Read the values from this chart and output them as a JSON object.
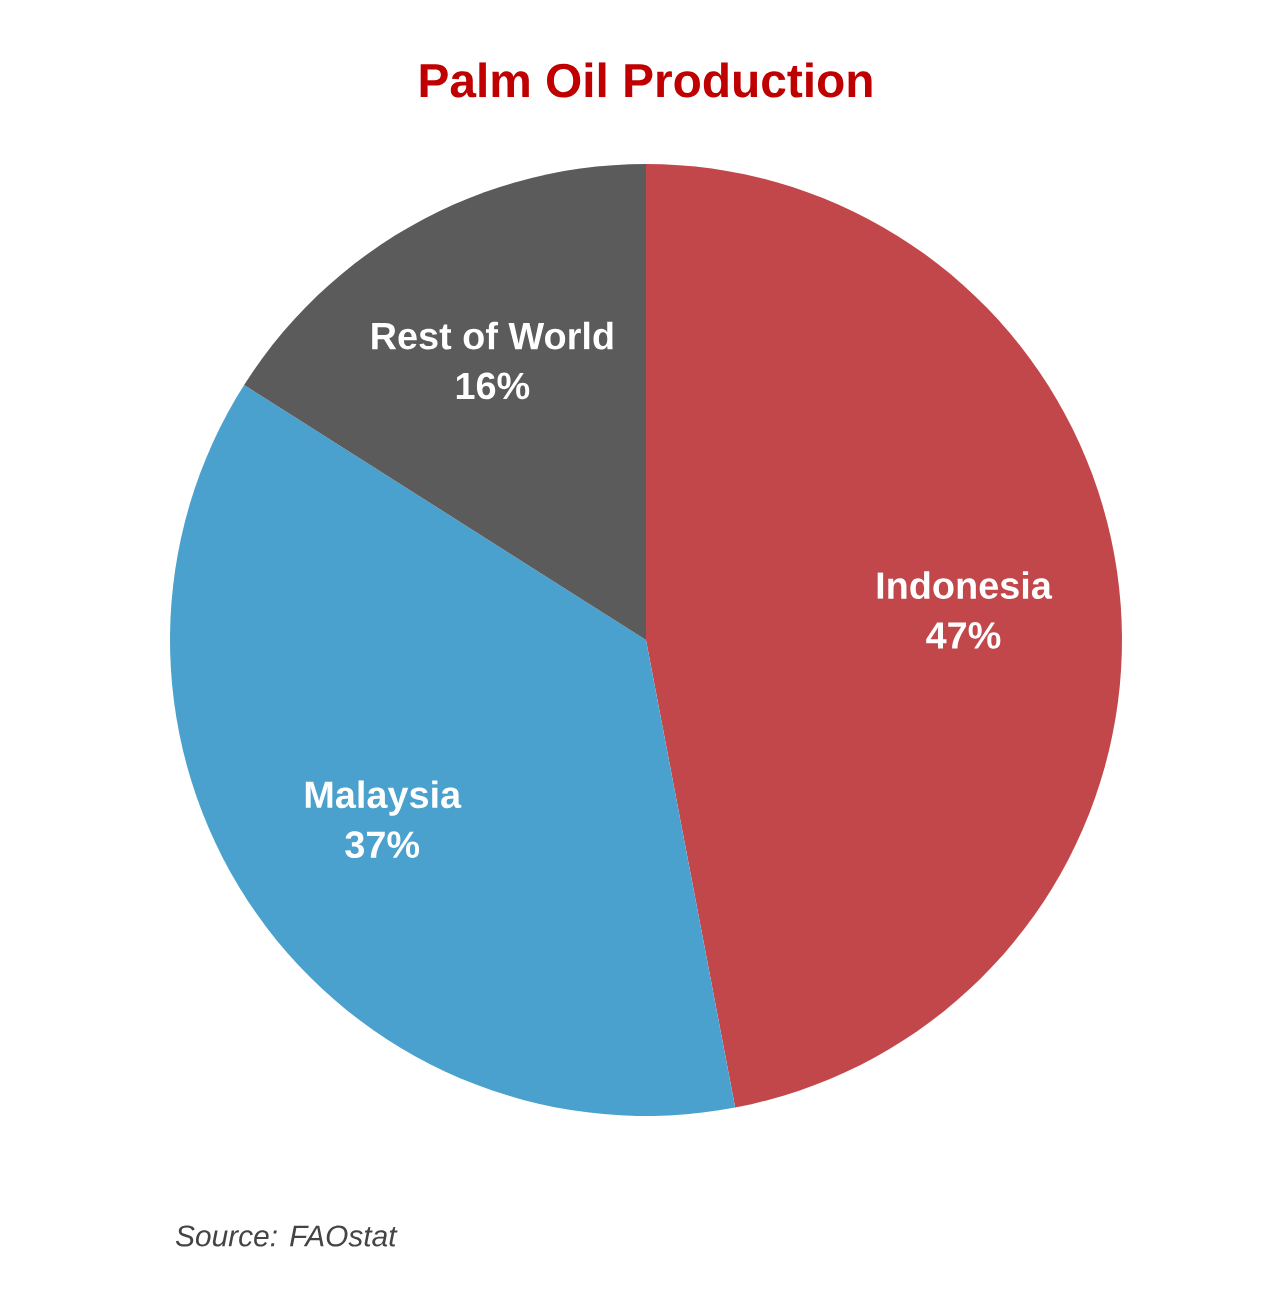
{
  "chart_data": {
    "type": "pie",
    "title": "Palm Oil Production",
    "categories": [
      "Indonesia",
      "Malaysia",
      "Rest of World"
    ],
    "values": [
      47,
      37,
      16
    ],
    "colors": [
      "#c2474b",
      "#4aa1cd",
      "#5b5b5b"
    ],
    "data_labels": true,
    "value_labels": [
      "47%",
      "37%",
      "16%"
    ],
    "annotations": [
      "Source: FAOstat"
    ]
  }
}
